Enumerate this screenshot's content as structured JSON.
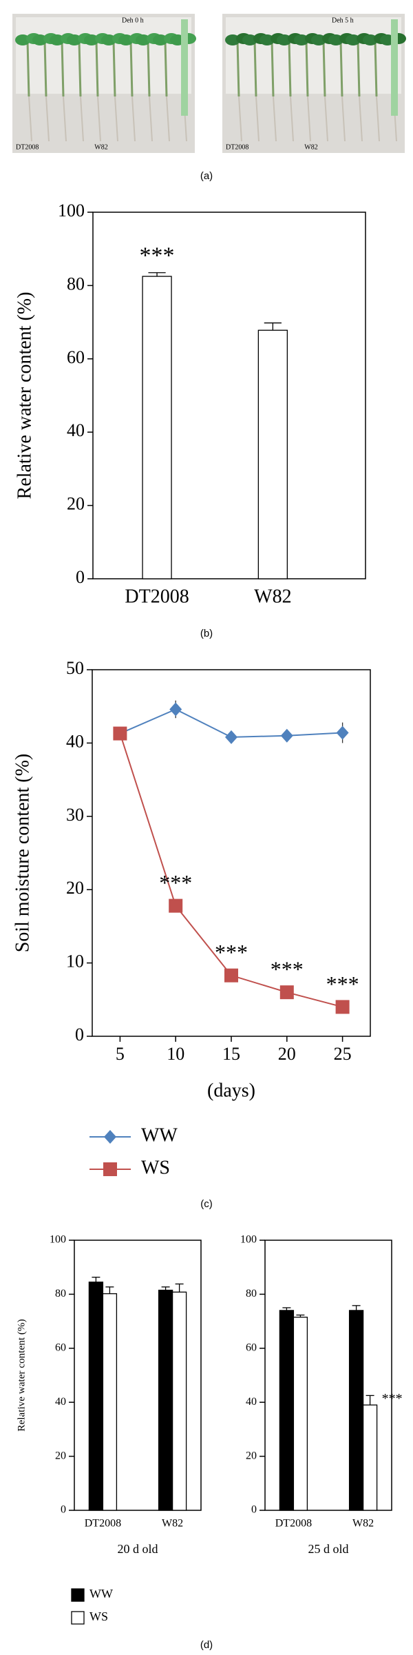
{
  "photos": [
    {
      "labels": [
        "Deh 0 h",
        "DT2008",
        "W82"
      ]
    },
    {
      "labels": [
        "Deh 5 h",
        "DT2008",
        "W82"
      ]
    }
  ],
  "captions": [
    "(a)",
    "(b)",
    "(c)",
    "(d)"
  ],
  "chart_data": [
    {
      "type": "bar",
      "categories": [
        "DT2008",
        "W82"
      ],
      "series": [
        {
          "color": "#ffffff",
          "values": [
            82.5,
            67.8
          ],
          "errors": [
            1,
            2
          ],
          "annotations": [
            "***",
            null
          ]
        }
      ],
      "ylim": [
        0,
        100
      ],
      "yticks": [
        0,
        20,
        40,
        60,
        80,
        100
      ],
      "ylabel": "Relative water content (%)"
    },
    {
      "type": "line",
      "x": [
        5,
        10,
        15,
        20,
        25
      ],
      "xlim": [
        2.5,
        27.5
      ],
      "xticks": [
        5,
        10,
        15,
        20,
        25
      ],
      "ylim": [
        0,
        50
      ],
      "yticks": [
        0,
        10,
        20,
        30,
        40,
        50
      ],
      "xlabel": "(days)",
      "ylabel": "Soil moisture content (%)",
      "series": [
        {
          "name": "WW",
          "color": "#4f81bd",
          "marker": "diamond",
          "values": [
            41.3,
            44.6,
            40.8,
            41,
            41.4
          ],
          "errors": [
            0,
            1.2,
            0.4,
            0.8,
            1.4
          ]
        },
        {
          "name": "WS",
          "color": "#c0504d",
          "marker": "square",
          "values": [
            41.3,
            17.8,
            8.3,
            6,
            4
          ],
          "errors": [
            0,
            0.5,
            0.4,
            0.4,
            0.4
          ],
          "annotations": [
            null,
            "***",
            "***",
            "***",
            "***"
          ]
        }
      ],
      "legend": "below"
    },
    {
      "type": "bar",
      "subtitle": "20 d old",
      "ylabel": "Relative water content (%)",
      "categories": [
        "DT2008",
        "W82"
      ],
      "series": [
        {
          "color": "#000000",
          "values": [
            84.5,
            81.5
          ],
          "errors": [
            1.8,
            1.2
          ]
        },
        {
          "color": "#ffffff",
          "values": [
            80.2,
            80.8
          ],
          "errors": [
            2.5,
            3
          ]
        }
      ],
      "ylim": [
        0,
        100
      ],
      "yticks": [
        0,
        20,
        40,
        60,
        80,
        100
      ]
    },
    {
      "type": "bar",
      "subtitle": "25 d old",
      "categories": [
        "DT2008",
        "W82"
      ],
      "series": [
        {
          "name": "WW",
          "color": "#000000",
          "values": [
            74,
            74
          ],
          "errors": [
            1,
            1.8
          ]
        },
        {
          "name": "WS",
          "color": "#ffffff",
          "values": [
            71.5,
            39
          ],
          "errors": [
            0.8,
            3.5
          ],
          "annotations": [
            null,
            "***"
          ]
        }
      ],
      "ylim": [
        0,
        100
      ],
      "yticks": [
        0,
        20,
        40,
        60,
        80,
        100
      ],
      "legend": "below"
    }
  ]
}
